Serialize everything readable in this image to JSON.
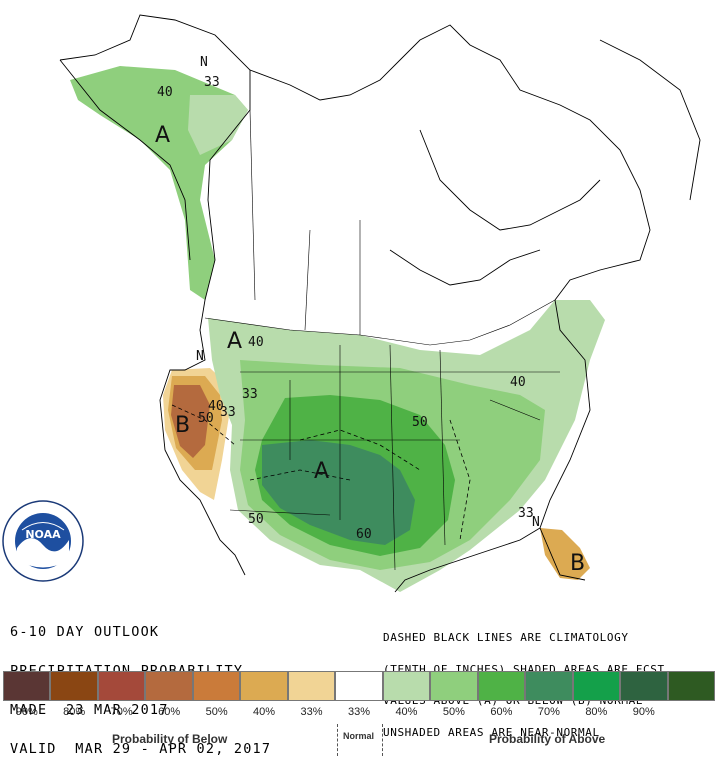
{
  "title_lines": [
    "6-10 DAY OUTLOOK",
    "PRECIPITATION PROBABILITY",
    "MADE  23 MAR 2017",
    "VALID  MAR 29 - APR 02, 2017"
  ],
  "notes_lines": [
    "DASHED BLACK LINES ARE CLIMATOLOGY",
    "(TENTH OF INCHES) SHADED AREAS ARE FCST",
    "VALUES ABOVE (A) OR BELOW (B) NORMAL",
    "UNSHADED AREAS ARE NEAR-NORMAL"
  ],
  "logo": {
    "text": "NOAA",
    "ring_text": "NATIONAL OCEANIC AND ATMOSPHERIC ADMINISTRATION",
    "ring_text_bottom": "U.S. DEPARTMENT OF COMMERCE"
  },
  "map_labels": {
    "alaska_n": "N",
    "alaska_33": "33",
    "alaska_40": "40",
    "alaska_a": "A",
    "nw_a": "A",
    "nw_40": "40",
    "west_n": "N",
    "west_40": "40",
    "west_50": "50",
    "west_33": "33",
    "west_33b": "33",
    "west_b": "B",
    "center_a": "A",
    "center_50": "50",
    "center_50b": "50",
    "center_60": "60",
    "ne_40": "40",
    "fl_33": "33",
    "fl_n": "N",
    "fl_b": "B"
  },
  "legend": {
    "colors": [
      "#5a3634",
      "#8a4613",
      "#a4493a",
      "#b46a3e",
      "#ca7b3a",
      "#dcaa52",
      "#f1d495",
      "#ffffff",
      "#b8dcac",
      "#8fcf7d",
      "#4fb246",
      "#3e8c5e",
      "#14a04a",
      "#2e6340",
      "#2e5a22"
    ],
    "ticks": [
      "90%",
      "80%",
      "70%",
      "60%",
      "50%",
      "40%",
      "33%",
      "33%",
      "40%",
      "50%",
      "60%",
      "70%",
      "80%",
      "90%"
    ],
    "below_label": "Probability of Below",
    "normal_label": "Normal",
    "above_label": "Probability of Above"
  }
}
